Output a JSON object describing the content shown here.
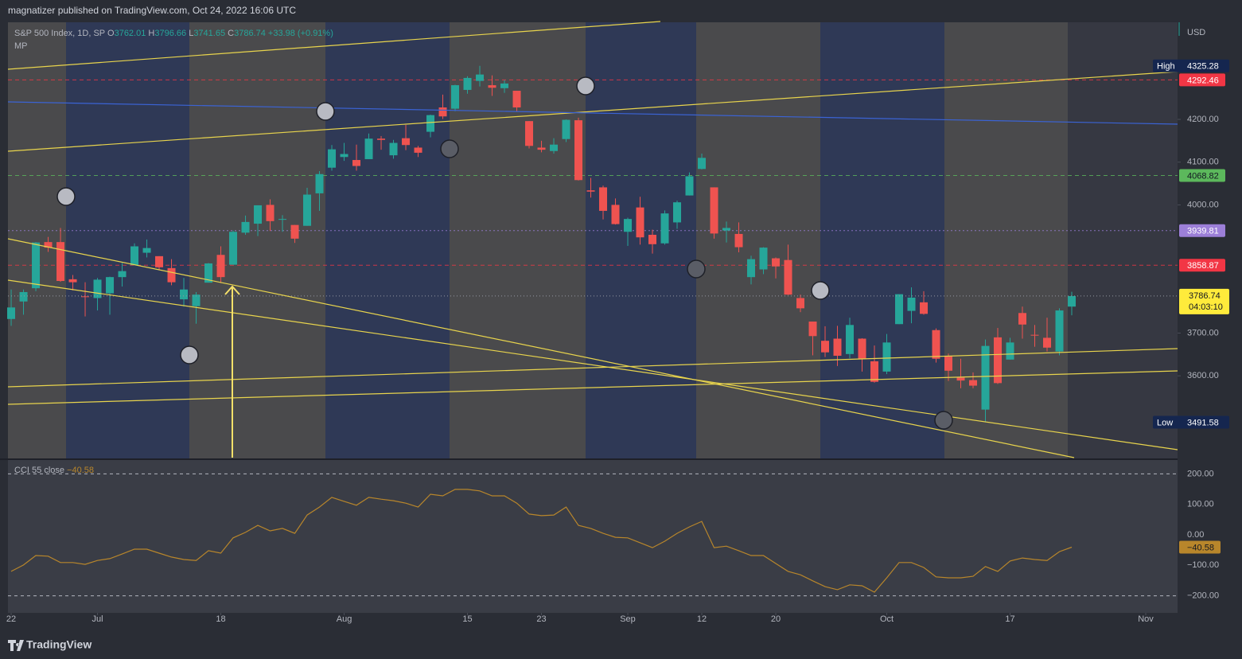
{
  "header": {
    "publisher": "magnatizer published on TradingView.com, Oct 24, 2022 16:06 UTC"
  },
  "chart_data": {
    "type": "candlestick",
    "symbol": "S&P 500 Index, 1D, SP",
    "ohlc_keys": [
      "O",
      "H",
      "L",
      "C"
    ],
    "change": "+33.98 (+0.91%)",
    "study": "MP",
    "currency": "USD",
    "up_color": "#26a69a",
    "down_color": "#ef5350",
    "x": [
      0,
      1,
      2,
      3,
      4,
      5,
      6,
      7,
      8,
      9,
      10,
      11,
      12,
      13,
      14,
      15,
      16,
      17,
      18,
      19,
      20,
      21,
      22,
      23,
      24,
      25,
      26,
      27,
      28,
      29,
      30,
      31,
      32,
      33,
      34,
      35,
      36,
      37,
      38,
      39,
      40,
      41,
      42,
      43,
      44,
      45,
      46,
      47,
      48,
      49,
      50,
      51,
      52,
      53,
      54,
      55,
      56,
      57,
      58,
      59,
      60,
      61,
      62,
      63,
      64,
      65,
      66,
      67,
      68,
      69,
      70,
      71,
      72,
      73,
      74,
      75,
      76,
      77,
      78,
      79,
      80,
      81,
      82,
      83,
      84,
      85,
      86
    ],
    "open": [
      3733,
      3774,
      3805,
      3913,
      3913,
      3826,
      3786,
      3782,
      3793,
      3831,
      3859,
      3888,
      3880,
      3852,
      3779,
      3763,
      3818,
      3883,
      3860,
      3935,
      3956,
      4000,
      3966,
      3953,
      3951,
      4027,
      4087,
      4112,
      4105,
      4107,
      4155,
      4116,
      4156,
      4134,
      4171,
      4228,
      4225,
      4269,
      4290,
      4280,
      4273,
      4267,
      4196,
      4134,
      4126,
      4154,
      4198,
      4034,
      4041,
      4000,
      3937,
      3994,
      3930,
      3910,
      3959,
      4022,
      4084,
      4041,
      3940,
      3932,
      3831,
      3849,
      3875,
      3871,
      3782,
      3727,
      3682,
      3687,
      3651,
      3687,
      3634,
      3610,
      3721,
      3752,
      3772,
      3707,
      3646,
      3596,
      3590,
      3521,
      3690,
      3638,
      3747,
      3696,
      3689,
      3657,
      3762.01
    ],
    "high": [
      3802,
      3802,
      3913,
      3925,
      3946,
      3836,
      3819,
      3829,
      3832,
      3864,
      3910,
      3919,
      3880,
      3873,
      3829,
      3796,
      3864,
      3903,
      3940,
      3975,
      3999,
      4013,
      3976,
      3953,
      4040,
      4079,
      4140,
      4145,
      4141,
      4167,
      4161,
      4152,
      4187,
      4138,
      4211,
      4258,
      4281,
      4301,
      4325.28,
      4303,
      4292,
      4267,
      4196,
      4150,
      4156,
      4200,
      4204,
      4063,
      4045,
      4015,
      3970,
      4019,
      3942,
      3987,
      4010,
      4076,
      4120,
      4041,
      3961,
      3959,
      3881,
      3901,
      3877,
      3907,
      3790,
      3727,
      3716,
      3717,
      3736,
      3688,
      3671,
      3698,
      3791,
      3807,
      3798,
      3711,
      3652,
      3640,
      3608,
      3685,
      3712,
      3689,
      3762,
      3719,
      3736,
      3758,
      3796.66
    ],
    "low": [
      3717,
      3743,
      3798,
      3890,
      3820,
      3800,
      3739,
      3753,
      3743,
      3809,
      3859,
      3877,
      3847,
      3812,
      3762,
      3722,
      3818,
      3817,
      3860,
      3930,
      3927,
      3939,
      3937,
      3911,
      3951,
      3986,
      4080,
      4103,
      4080,
      4107,
      4129,
      4108,
      4128,
      4112,
      4158,
      4201,
      4219,
      4260,
      4277,
      4255,
      4262,
      4219,
      4132,
      4123,
      4120,
      4147,
      4057,
      4017,
      3966,
      3954,
      3904,
      3907,
      3886,
      3907,
      3944,
      4022,
      4083,
      3921,
      3912,
      3889,
      3814,
      3838,
      3828,
      3789,
      3749,
      3648,
      3644,
      3623,
      3641,
      3610,
      3584,
      3604,
      3721,
      3723,
      3743,
      3631,
      3588,
      3571,
      3571,
      3491.58,
      3581,
      3638,
      3687,
      3668,
      3657,
      3648,
      3741.65
    ],
    "close": [
      3760,
      3796,
      3912,
      3900,
      3822,
      3819,
      3785,
      3825,
      3831,
      3845,
      3903,
      3899,
      3854,
      3819,
      3802,
      3790,
      3863,
      3831,
      3937,
      3960,
      3999,
      3962,
      3967,
      3921,
      4024,
      4072,
      4130,
      4119,
      4091,
      4155,
      4152,
      4145,
      4140,
      4122,
      4210,
      4207,
      4280,
      4297,
      4305,
      4274,
      4284,
      4228,
      4138,
      4129,
      4141,
      4199,
      4058,
      4031,
      3986,
      3955,
      3967,
      3924,
      3908,
      3980,
      4006,
      4067,
      4110,
      3933,
      3946,
      3901,
      3873,
      3900,
      3856,
      3790,
      3758,
      3693,
      3655,
      3647,
      3719,
      3640,
      3586,
      3678,
      3791,
      3783,
      3745,
      3640,
      3612,
      3589,
      3577,
      3670,
      3583,
      3678,
      3720,
      3695,
      3666,
      3753,
      3786.74
    ],
    "xlim": [
      -0.26,
      94.58
    ],
    "xticks": [
      {
        "value": 0,
        "label": "22"
      },
      {
        "value": 7,
        "label": "Jul"
      },
      {
        "value": 17,
        "label": "18"
      },
      {
        "value": 27,
        "label": "Aug"
      },
      {
        "value": 37,
        "label": "15"
      },
      {
        "value": 43,
        "label": "23"
      },
      {
        "value": 50,
        "label": "Sep"
      },
      {
        "value": 56,
        "label": "12"
      },
      {
        "value": 62,
        "label": "20"
      },
      {
        "value": 71,
        "label": "Oct"
      },
      {
        "value": 81,
        "label": "17"
      },
      {
        "value": 92,
        "label": "Nov"
      }
    ],
    "ylim": [
      3408.6,
      4432.8
    ],
    "yticks": [
      {
        "value": 4200,
        "label": "4200.00"
      },
      {
        "value": 4100,
        "label": "4100.00"
      },
      {
        "value": 4000,
        "label": "4000.00"
      },
      {
        "value": 3700,
        "label": "3700.00"
      },
      {
        "value": 3600,
        "label": "3600.00"
      }
    ],
    "price_lines": [
      {
        "value": 4292.46,
        "color": "#f23645",
        "text_color": "#ffffff",
        "style": "dashed"
      },
      {
        "value": 4068.82,
        "color": "#5cb85c",
        "text_color": "#131722",
        "style": "dashed"
      },
      {
        "value": 3939.81,
        "color": "#9c7fd8",
        "text_color": "#ffffff",
        "style": "dotted"
      },
      {
        "value": 3858.87,
        "color": "#f23645",
        "text_color": "#ffffff",
        "style": "dashed"
      }
    ],
    "last_price_color": "#ffeb3b",
    "countdown": "04:03:10",
    "high_label": "High",
    "low_label": "Low",
    "indicator": {
      "name": "CCI 55",
      "source": "close",
      "color": "#b8862b",
      "values": [
        -120,
        -99,
        -68,
        -70,
        -91,
        -91,
        -97,
        -84,
        -78,
        -63,
        -47,
        -47,
        -60,
        -73,
        -81,
        -84,
        -52,
        -60,
        -10,
        8,
        31,
        13,
        21,
        5,
        65,
        91,
        123,
        110,
        97,
        123,
        117,
        112,
        104,
        91,
        133,
        128,
        149,
        149,
        144,
        128,
        128,
        104,
        68,
        63,
        65,
        91,
        31,
        21,
        5,
        -8,
        -10,
        -26,
        -42,
        -21,
        5,
        26,
        44,
        -42,
        -37,
        -52,
        -68,
        -68,
        -94,
        -120,
        -131,
        -151,
        -170,
        -180,
        -164,
        -167,
        -188,
        -141,
        -91,
        -91,
        -107,
        -138,
        -141,
        -141,
        -136,
        -104,
        -120,
        -86,
        -76,
        -81,
        -84,
        -55,
        -40.58
      ],
      "value_label": "−40.58",
      "ylim": [
        -255.9,
        245.4
      ],
      "yticks": [
        {
          "value": 200,
          "label": "200.00"
        },
        {
          "value": 100,
          "label": "100.00"
        },
        {
          "value": 0,
          "label": "0.00"
        },
        {
          "value": -100,
          "label": "−100.00"
        },
        {
          "value": -200,
          "label": "−200.00"
        }
      ]
    }
  },
  "footer": {
    "brand": "TradingView"
  }
}
